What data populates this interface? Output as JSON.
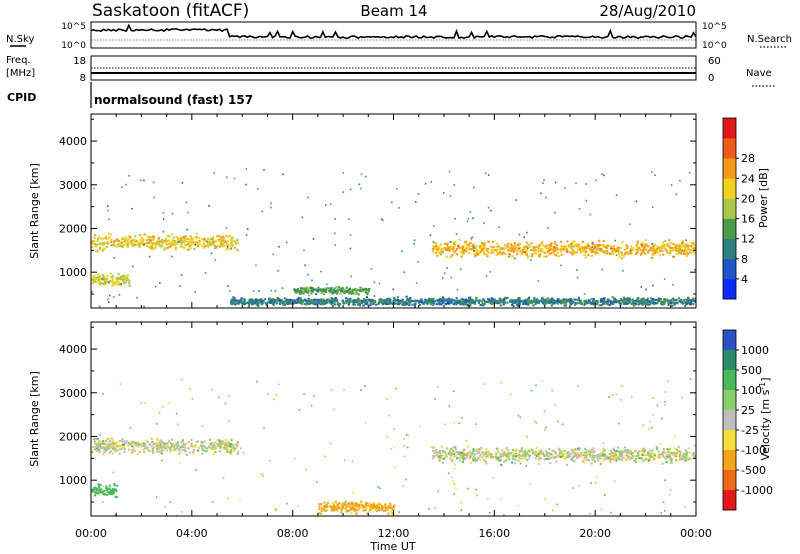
{
  "header": {
    "station": "Saskatoon (fitACF)",
    "beam": "Beam 14",
    "date": "28/Aug/2010"
  },
  "housekeeping": {
    "nsky_label": "N.Sky",
    "nsearch_label": "N.Search",
    "freq_label": "Freq.",
    "freq_unit": "[MHz]",
    "nave_label": "Nave",
    "cpid_label": "CPID",
    "cpid_value": "normalsound (fast) 157",
    "noise_ticks": [
      "10^5",
      "10^0"
    ],
    "freq_ticks": [
      "18",
      "8"
    ],
    "nave_ticks": [
      "60",
      "0"
    ]
  },
  "chart_data": [
    {
      "type": "heatmap",
      "title": "Power",
      "xlabel": "",
      "ylabel": "Slant Range [km]",
      "xlim": [
        "00:00",
        "24:00"
      ],
      "ylim": [
        180,
        4620
      ],
      "y_ticks": [
        1000,
        2000,
        3000,
        4000
      ],
      "colorbar": {
        "label": "Power [dB]",
        "ticks": [
          4,
          8,
          12,
          16,
          20,
          24,
          28
        ],
        "colors": [
          "#0a2bff",
          "#1f55c8",
          "#2f7f7e",
          "#4a9c4a",
          "#a8c84a",
          "#f0d020",
          "#f59a18",
          "#ee5a18",
          "#e01818"
        ]
      },
      "features": [
        {
          "t_start": 0.0,
          "t_end": 5.8,
          "range_center_km": 1700,
          "range_width_km": 400,
          "power_db": 20
        },
        {
          "t_start": 13.5,
          "t_end": 24.0,
          "range_center_km": 1550,
          "range_width_km": 400,
          "power_db": 22
        },
        {
          "t_start": 0.0,
          "t_end": 1.5,
          "range_center_km": 850,
          "range_width_km": 300,
          "power_db": 18
        },
        {
          "t_start": 5.5,
          "t_end": 24.0,
          "range_center_km": 350,
          "range_width_km": 200,
          "power_db": 8
        },
        {
          "t_start": 8.0,
          "t_end": 11.0,
          "range_center_km": 600,
          "range_width_km": 200,
          "power_db": 12
        }
      ]
    },
    {
      "type": "heatmap",
      "title": "Velocity",
      "xlabel": "Time UT",
      "ylabel": "Slant Range [km]",
      "x_ticks": [
        "00:00",
        "04:00",
        "08:00",
        "12:00",
        "16:00",
        "20:00",
        "00:00"
      ],
      "ylim": [
        180,
        4620
      ],
      "y_ticks": [
        1000,
        2000,
        3000,
        4000
      ],
      "colorbar": {
        "label": "Velocity [m s^-1]",
        "ticks": [
          "1000",
          "500",
          "100",
          "25",
          "-25",
          "-100",
          "-500",
          "-1000"
        ],
        "colors": [
          "#2d4fc4",
          "#2d8a6a",
          "#4ab85a",
          "#8ad06a",
          "#bebebe",
          "#f7dd3a",
          "#f3a61a",
          "#ee6a18",
          "#e41a1a"
        ]
      },
      "features": [
        {
          "t_start": 0.0,
          "t_end": 5.8,
          "range_center_km": 1800,
          "range_width_km": 400,
          "velocity_ms": 0
        },
        {
          "t_start": 13.5,
          "t_end": 24.0,
          "range_center_km": 1600,
          "range_width_km": 400,
          "velocity_ms": 0
        },
        {
          "t_start": 0.0,
          "t_end": 1.0,
          "range_center_km": 800,
          "range_width_km": 300,
          "velocity_ms": 150
        },
        {
          "t_start": 9.0,
          "t_end": 12.0,
          "range_center_km": 400,
          "range_width_km": 300,
          "velocity_ms": -100
        }
      ]
    }
  ]
}
